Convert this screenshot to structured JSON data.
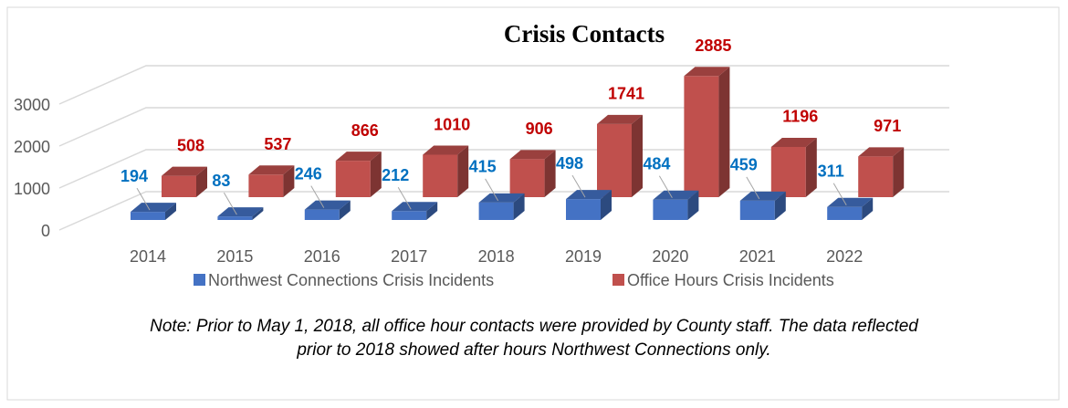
{
  "chart_data": {
    "type": "bar3d",
    "title": "Crisis Contacts",
    "categories": [
      "2014",
      "2015",
      "2016",
      "2017",
      "2018",
      "2019",
      "2020",
      "2021",
      "2022"
    ],
    "series": [
      {
        "name": "Northwest Connections Crisis Incidents",
        "color": "#4472c4",
        "label_color": "#0070c0",
        "values": [
          194,
          83,
          246,
          212,
          415,
          498,
          484,
          459,
          311
        ]
      },
      {
        "name": "Office Hours Crisis Incidents",
        "color": "#c0504d",
        "label_color": "#c00000",
        "values": [
          508,
          537,
          866,
          1010,
          906,
          1741,
          2885,
          1196,
          971
        ]
      }
    ],
    "ylim": [
      0,
      3000
    ],
    "yticks": [
      0,
      1000,
      2000,
      3000
    ],
    "grid": true,
    "legend": "bottom",
    "notes": [
      "Note: Prior to May 1, 2018, all office hour contacts were provided by County staff.  The data reflected",
      "prior to 2018 showed after hours Northwest Connections only."
    ]
  }
}
